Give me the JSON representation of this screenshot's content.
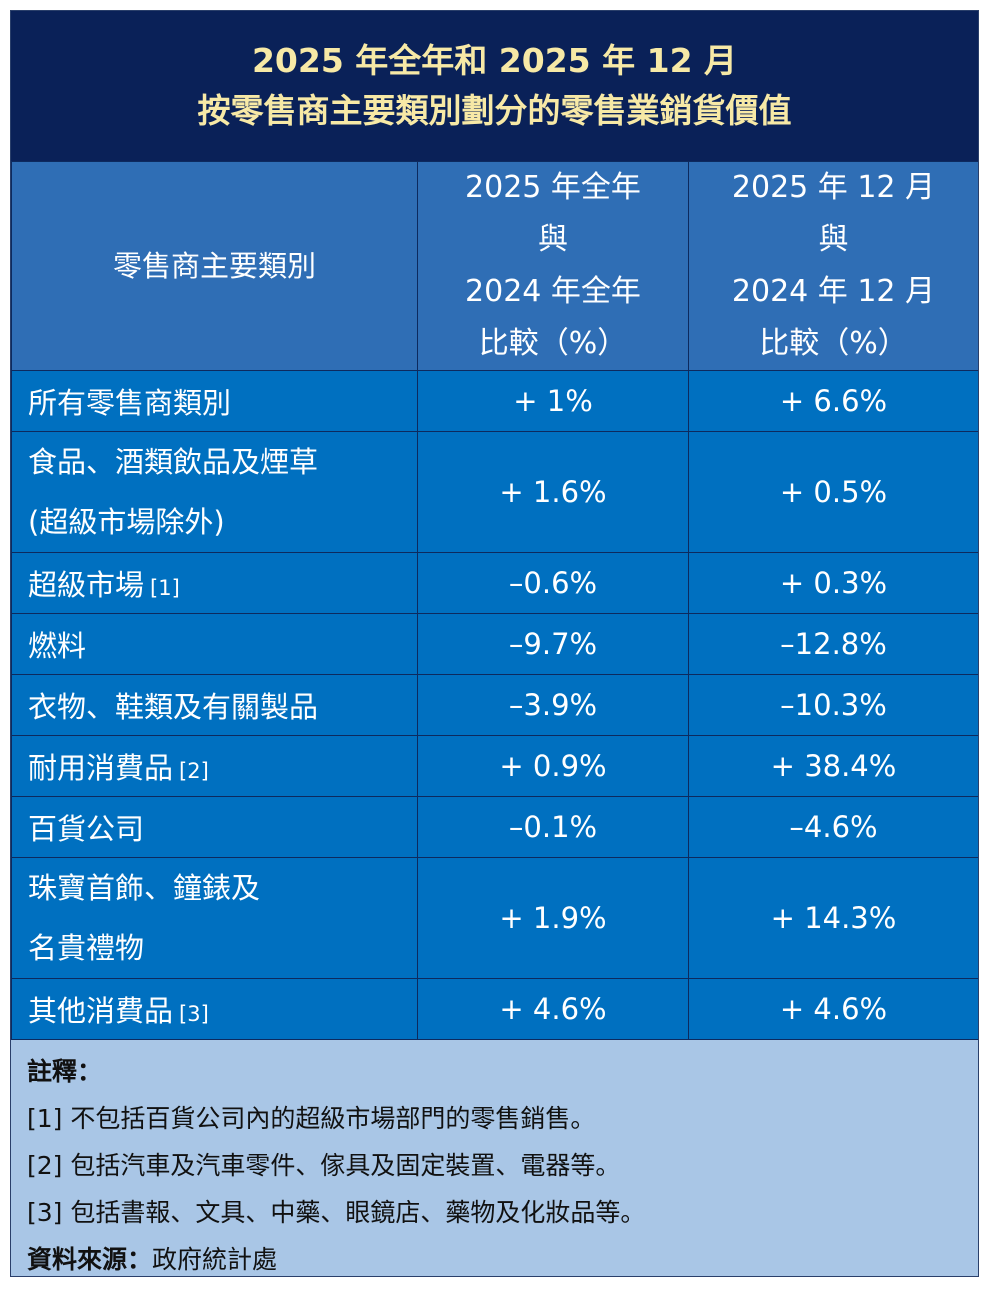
{
  "title": {
    "line1": "2025 年全年和 2025 年 12 月",
    "line2": "按零售商主要類別劃分的零售業銷貨價值"
  },
  "header": {
    "category": "零售商主要類別",
    "col1": [
      "2025 年全年",
      "與",
      "2024 年全年",
      "比較（%）"
    ],
    "col2": [
      "2025 年 12 月",
      "與",
      "2024 年 12 月",
      "比較（%）"
    ]
  },
  "rows": [
    {
      "label": [
        "所有零售商類別"
      ],
      "note": "",
      "year": "+ 1%",
      "dec": "+ 6.6%"
    },
    {
      "label": [
        "食品、酒類飲品及煙草",
        "(超級市場除外)"
      ],
      "note": "",
      "year": "+ 1.6%",
      "dec": "+ 0.5%"
    },
    {
      "label": [
        "超級市場"
      ],
      "note": "[1]",
      "year": "–0.6%",
      "dec": "+ 0.3%"
    },
    {
      "label": [
        "燃料"
      ],
      "note": "",
      "year": "–9.7%",
      "dec": "–12.8%"
    },
    {
      "label": [
        "衣物、鞋類及有關製品"
      ],
      "note": "",
      "year": "–3.9%",
      "dec": "–10.3%"
    },
    {
      "label": [
        "耐用消費品"
      ],
      "note": "[2]",
      "year": "+ 0.9%",
      "dec": "+ 38.4%"
    },
    {
      "label": [
        "百貨公司"
      ],
      "note": "",
      "year": "–0.1%",
      "dec": "–4.6%"
    },
    {
      "label": [
        "珠寶首飾、鐘錶及",
        "名貴禮物"
      ],
      "note": "",
      "year": "+ 1.9%",
      "dec": "+ 14.3%"
    },
    {
      "label": [
        "其他消費品"
      ],
      "note": "[3]",
      "year": "+ 4.6%",
      "dec": "+ 4.6%"
    }
  ],
  "notes": {
    "heading": "註釋：",
    "items": [
      "[1]  不包括百貨公司內的超級市場部門的零售銷售。",
      "[2]  包括汽車及汽車零件、傢具及固定裝置、電器等。",
      "[3]  包括書報、文具、中藥、眼鏡店、藥物及化妝品等。"
    ],
    "source_label": "資料來源：",
    "source_value": "政府統計處"
  },
  "colors": {
    "title_bg": "#0a2158",
    "title_text": "#f7e9a6",
    "header_bg": "#2f6eb5",
    "row_bg": "#0070c0",
    "notes_bg": "#a9c6e6"
  }
}
